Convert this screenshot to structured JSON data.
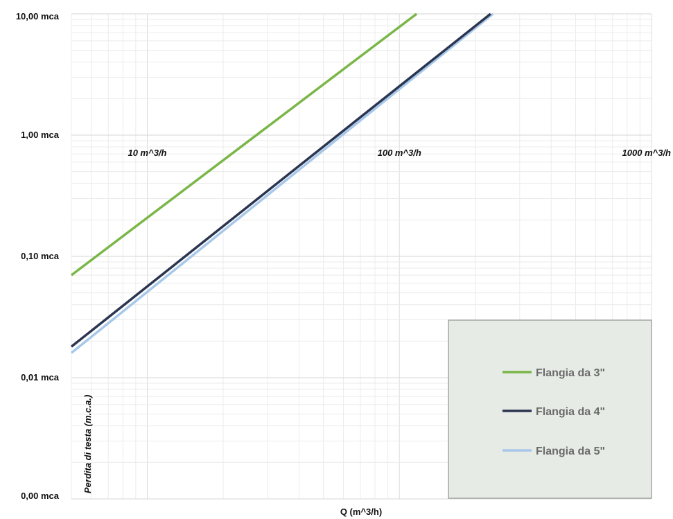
{
  "chart_data": {
    "type": "line",
    "title": "",
    "xlabel": "Q (m^3/h)",
    "ylabel": "Perdita di testa (m.c.a.)",
    "x_scale": "log",
    "y_scale": "log",
    "xlim": [
      5,
      1000
    ],
    "ylim": [
      0.001,
      10
    ],
    "x_tick_labels": [
      {
        "value": 10,
        "label": "10 m^3/h"
      },
      {
        "value": 100,
        "label": "100 m^3/h"
      },
      {
        "value": 1000,
        "label": "1000 m^3/h"
      }
    ],
    "y_tick_labels": [
      {
        "value": 10,
        "label": "10,00 mca"
      },
      {
        "value": 1,
        "label": "1,00 mca"
      },
      {
        "value": 0.1,
        "label": "0,10 mca"
      },
      {
        "value": 0.01,
        "label": "0,01 mca"
      },
      {
        "value": 0.001,
        "label": "0,00 mca"
      }
    ],
    "grid": true,
    "legend_position": "bottom-right",
    "series": [
      {
        "name": "Flangia da 3\"",
        "color": "#7ab648",
        "x": [
          5,
          117
        ],
        "y": [
          0.07,
          10
        ]
      },
      {
        "name": "Flangia da 4\"",
        "color": "#2c3550",
        "x": [
          5,
          230
        ],
        "y": [
          0.018,
          10
        ]
      },
      {
        "name": "Flangia da 5\"",
        "color": "#a7c8ea",
        "x": [
          5,
          235
        ],
        "y": [
          0.016,
          10
        ]
      }
    ]
  }
}
